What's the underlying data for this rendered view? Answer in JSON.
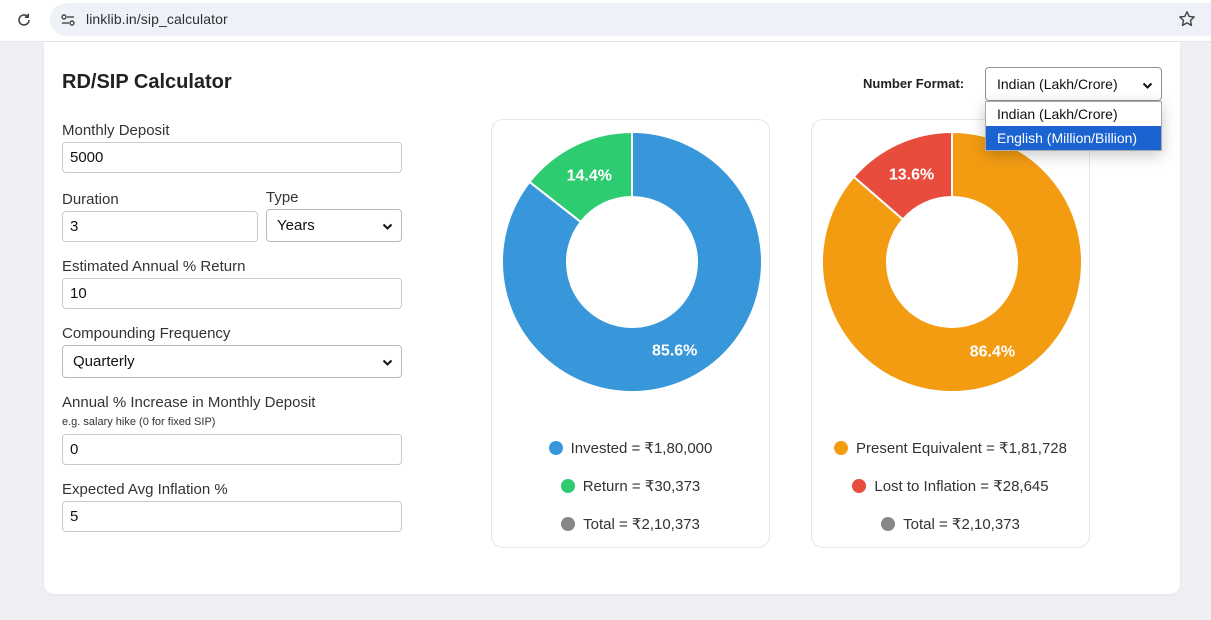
{
  "browser": {
    "url": "linklib.in/sip_calculator"
  },
  "page": {
    "title": "RD/SIP Calculator",
    "number_format": {
      "label": "Number Format:",
      "value": "Indian (Lakh/Crore)",
      "options": [
        "Indian (Lakh/Crore)",
        "English (Million/Billion)"
      ],
      "highlighted": "English (Million/Billion)"
    }
  },
  "form": {
    "monthly_deposit": {
      "label": "Monthly Deposit",
      "value": "5000"
    },
    "duration": {
      "label": "Duration",
      "value": "3"
    },
    "type": {
      "label": "Type",
      "value": "Years"
    },
    "annual_return": {
      "label": "Estimated Annual % Return",
      "value": "10"
    },
    "compounding": {
      "label": "Compounding Frequency",
      "value": "Quarterly"
    },
    "annual_increase": {
      "label": "Annual % Increase in Monthly Deposit",
      "hint": "e.g. salary hike (0 for fixed SIP)",
      "value": "0"
    },
    "inflation": {
      "label": "Expected Avg Inflation %",
      "value": "5"
    }
  },
  "chart_data": [
    {
      "type": "pie",
      "categories": [
        "Invested",
        "Return"
      ],
      "values": [
        180000,
        30373
      ],
      "slice_labels": [
        "85.6%",
        "14.4%"
      ],
      "colors": [
        "#3897db",
        "#2ecc71"
      ],
      "legend": [
        {
          "text": "Invested = ₹1,80,000",
          "color": "#3897db"
        },
        {
          "text": "Return = ₹30,373",
          "color": "#2ecc71"
        },
        {
          "text": "Total = ₹2,10,373",
          "color": "#888888"
        }
      ]
    },
    {
      "type": "pie",
      "categories": [
        "Present Equivalent",
        "Lost to Inflation"
      ],
      "values": [
        181728,
        28645
      ],
      "slice_labels": [
        "86.4%",
        "13.6%"
      ],
      "colors": [
        "#f39c12",
        "#e74c3c"
      ],
      "legend": [
        {
          "text": "Present Equivalent = ₹1,81,728",
          "color": "#f39c12"
        },
        {
          "text": "Lost to Inflation = ₹28,645",
          "color": "#e74c3c"
        },
        {
          "text": "Total = ₹2,10,373",
          "color": "#888888"
        }
      ]
    }
  ]
}
